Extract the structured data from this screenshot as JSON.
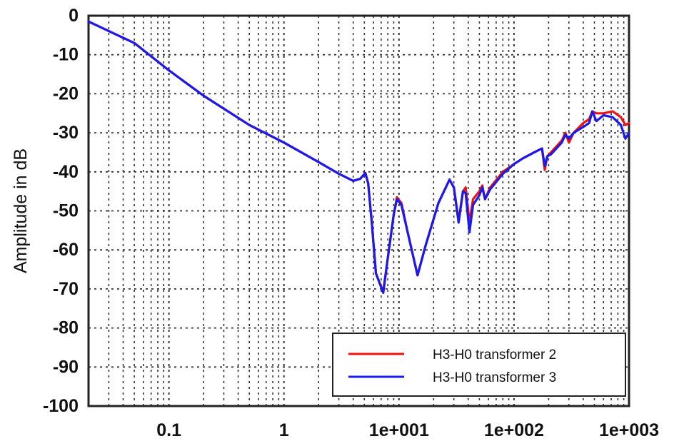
{
  "chart_data": {
    "type": "line",
    "title": "",
    "xlabel": "",
    "ylabel": "Amplitude in dB",
    "xscale": "log",
    "xlim": [
      0.02,
      1000
    ],
    "ylim": [
      -100,
      0
    ],
    "grid": true,
    "legend_position": "bottom-right",
    "x_tick_labels": [
      "0.1",
      "1",
      "1e+001",
      "1e+002",
      "1e+003"
    ],
    "x_tick_values": [
      0.1,
      1,
      10,
      100,
      1000
    ],
    "y_tick_labels": [
      "0",
      "-10",
      "-20",
      "-30",
      "-40",
      "-50",
      "-60",
      "-70",
      "-80",
      "-90",
      "-100"
    ],
    "y_tick_values": [
      0,
      -10,
      -20,
      -30,
      -40,
      -50,
      -60,
      -70,
      -80,
      -90,
      -100
    ],
    "series": [
      {
        "name": "H3-H0 transformer 2",
        "color": "#ee1111",
        "points": [
          [
            0.02,
            -1.5
          ],
          [
            0.05,
            -7
          ],
          [
            0.1,
            -14
          ],
          [
            0.2,
            -20.5
          ],
          [
            0.5,
            -28
          ],
          [
            1,
            -32.5
          ],
          [
            2,
            -37.5
          ],
          [
            3,
            -40.5
          ],
          [
            4,
            -42.3
          ],
          [
            4.6,
            -41.8
          ],
          [
            5.1,
            -40.3
          ],
          [
            5.4,
            -43
          ],
          [
            5.8,
            -53
          ],
          [
            6.3,
            -66
          ],
          [
            7,
            -69.5
          ],
          [
            7.3,
            -70.5
          ],
          [
            8,
            -62
          ],
          [
            9,
            -51
          ],
          [
            9.6,
            -46.5
          ],
          [
            10.5,
            -48
          ],
          [
            12,
            -56
          ],
          [
            14.5,
            -66.5
          ],
          [
            17,
            -59
          ],
          [
            22,
            -48
          ],
          [
            27.5,
            -42
          ],
          [
            30,
            -44
          ],
          [
            33,
            -52.5
          ],
          [
            36,
            -45
          ],
          [
            38,
            -44
          ],
          [
            41,
            -53
          ],
          [
            44,
            -47
          ],
          [
            50,
            -45
          ],
          [
            53,
            -43.5
          ],
          [
            56,
            -47
          ],
          [
            62,
            -44
          ],
          [
            80,
            -40
          ],
          [
            100,
            -38
          ],
          [
            120,
            -36.5
          ],
          [
            150,
            -35
          ],
          [
            175,
            -34
          ],
          [
            185,
            -39.5
          ],
          [
            195,
            -36
          ],
          [
            210,
            -35
          ],
          [
            260,
            -32
          ],
          [
            280,
            -30
          ],
          [
            300,
            -32.5
          ],
          [
            330,
            -30
          ],
          [
            400,
            -27.5
          ],
          [
            450,
            -26.5
          ],
          [
            480,
            -24.5
          ],
          [
            520,
            -25
          ],
          [
            600,
            -25
          ],
          [
            720,
            -24.5
          ],
          [
            850,
            -26
          ],
          [
            930,
            -28
          ],
          [
            1000,
            -27.5
          ]
        ]
      },
      {
        "name": "H3-H0 transformer 3",
        "color": "#1a1aee",
        "points": [
          [
            0.02,
            -1.5
          ],
          [
            0.05,
            -7
          ],
          [
            0.1,
            -14
          ],
          [
            0.2,
            -20.5
          ],
          [
            0.5,
            -28
          ],
          [
            1,
            -32.5
          ],
          [
            2,
            -37.5
          ],
          [
            3,
            -40.5
          ],
          [
            4,
            -42.3
          ],
          [
            4.6,
            -41.8
          ],
          [
            5.1,
            -40.3
          ],
          [
            5.4,
            -43
          ],
          [
            5.8,
            -53
          ],
          [
            6.3,
            -66
          ],
          [
            7,
            -69.5
          ],
          [
            7.3,
            -71
          ],
          [
            8,
            -62
          ],
          [
            9,
            -51
          ],
          [
            9.6,
            -47
          ],
          [
            10.5,
            -48.5
          ],
          [
            12,
            -56
          ],
          [
            14.5,
            -66.5
          ],
          [
            17,
            -59
          ],
          [
            22,
            -48
          ],
          [
            27.5,
            -42
          ],
          [
            30,
            -44
          ],
          [
            33,
            -53
          ],
          [
            36,
            -45
          ],
          [
            38,
            -45.5
          ],
          [
            41,
            -55.5
          ],
          [
            44,
            -48.5
          ],
          [
            50,
            -46
          ],
          [
            53,
            -44
          ],
          [
            56,
            -47
          ],
          [
            62,
            -44.5
          ],
          [
            80,
            -40.5
          ],
          [
            100,
            -38
          ],
          [
            120,
            -36.5
          ],
          [
            150,
            -35
          ],
          [
            175,
            -34
          ],
          [
            185,
            -38.5
          ],
          [
            195,
            -36
          ],
          [
            210,
            -35.5
          ],
          [
            260,
            -32.5
          ],
          [
            280,
            -30.5
          ],
          [
            300,
            -31.5
          ],
          [
            330,
            -30
          ],
          [
            400,
            -28.5
          ],
          [
            450,
            -27.5
          ],
          [
            480,
            -24.5
          ],
          [
            520,
            -27
          ],
          [
            600,
            -25.5
          ],
          [
            720,
            -26
          ],
          [
            850,
            -28
          ],
          [
            930,
            -31.5
          ],
          [
            1000,
            -30
          ]
        ]
      }
    ]
  }
}
